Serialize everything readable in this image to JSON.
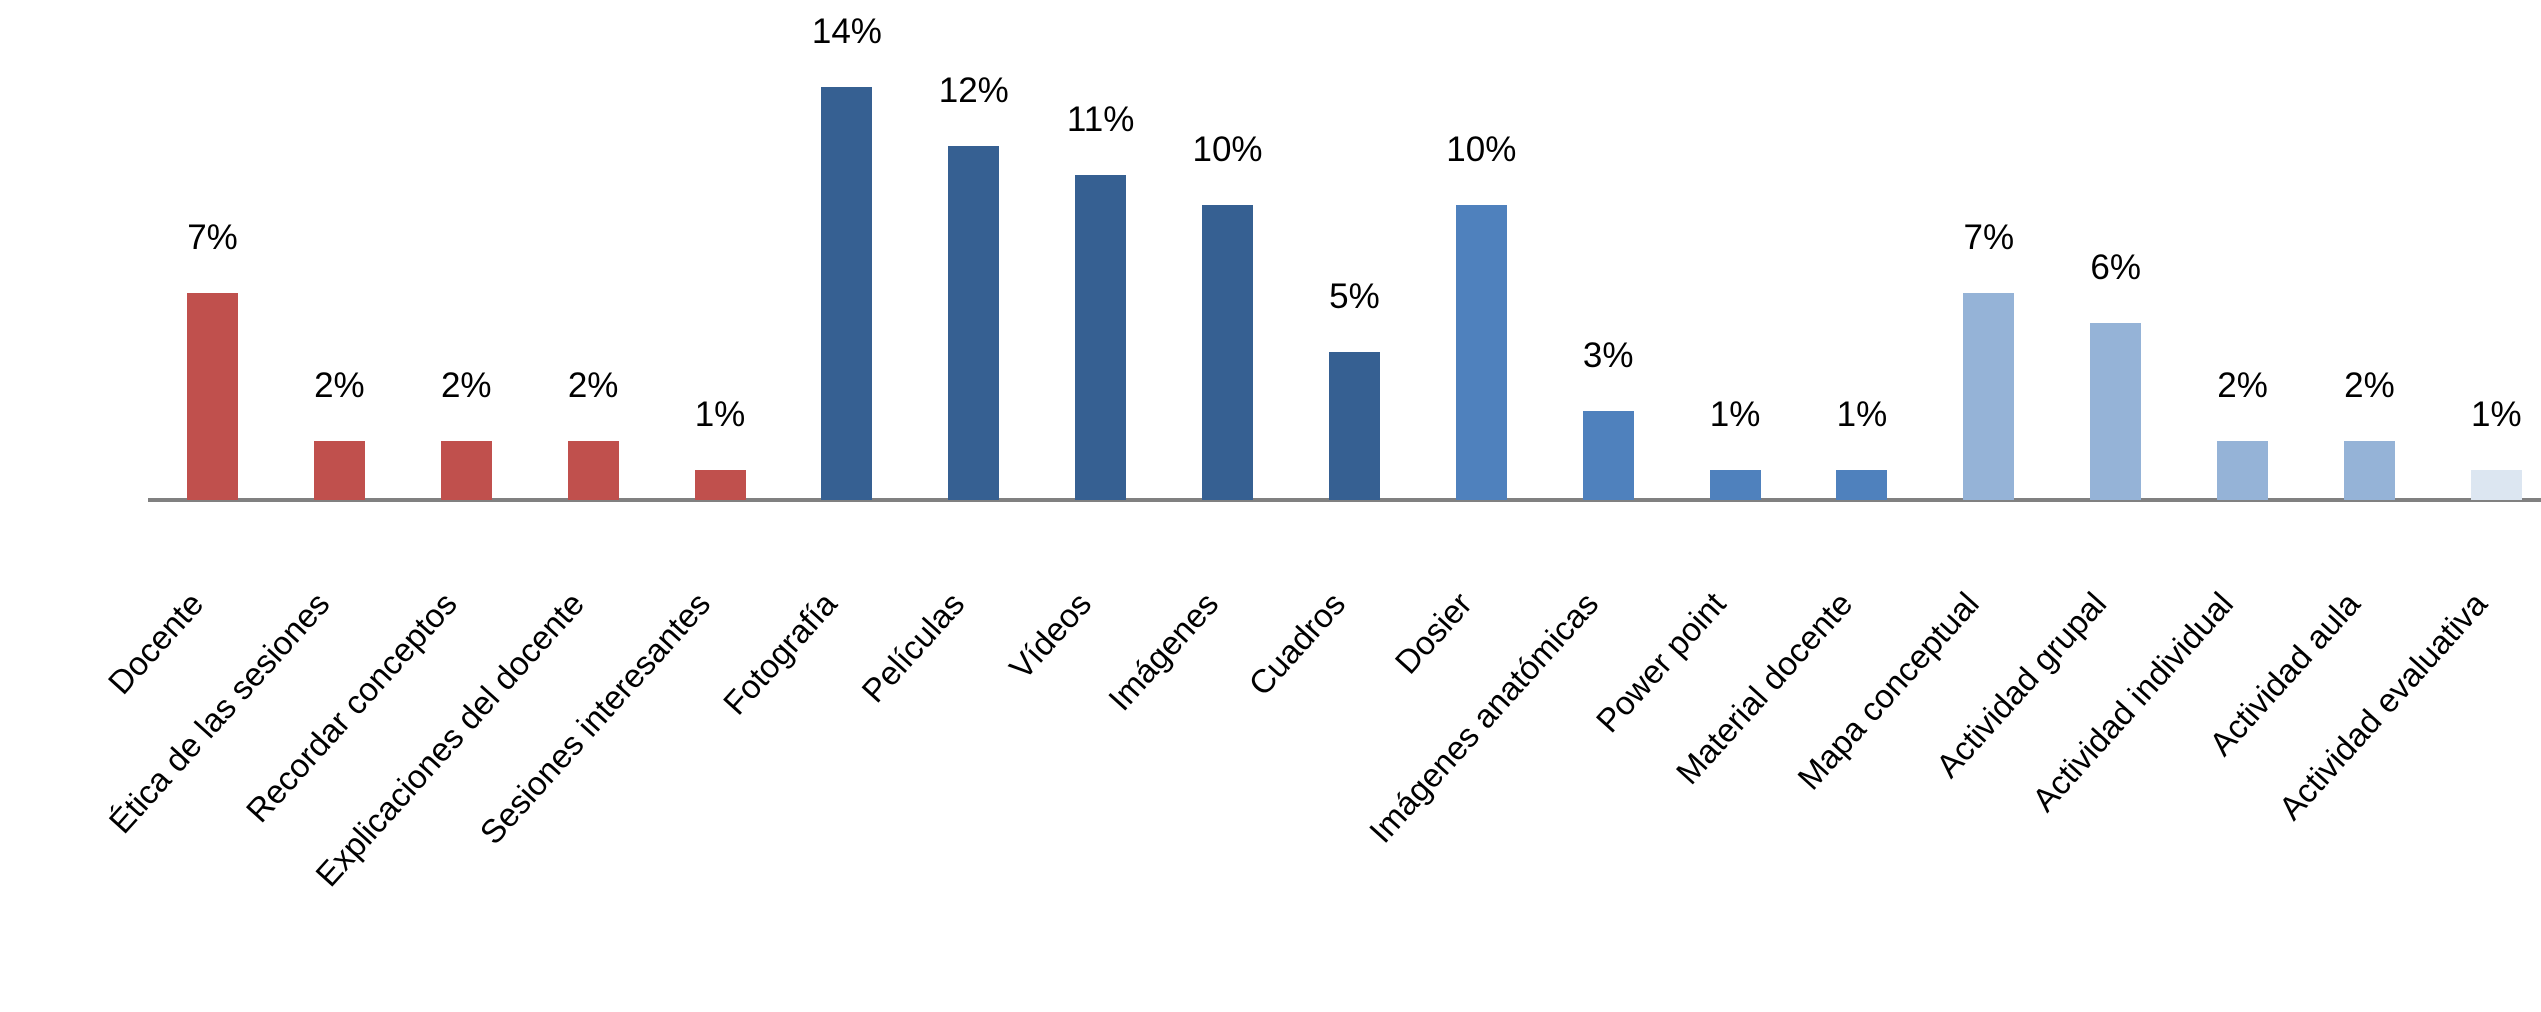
{
  "chart_data": {
    "type": "bar",
    "title": "",
    "xlabel": "",
    "ylabel": "",
    "categories": [
      "Docente",
      "Ética de las sesiones",
      "Recordar conceptos",
      "Explicaciones del docente",
      "Sesiones interesantes",
      "Fotografía",
      "Películas",
      "Vídeos",
      "Imágenes",
      "Cuadros",
      "Dosier",
      "Imágenes anatómicas",
      "Power point",
      "Material docente",
      "Mapa conceptual",
      "Actividad grupal",
      "Actividad individual",
      "Actividad aula",
      "Actividad evaluativa"
    ],
    "values": [
      7,
      2,
      2,
      2,
      1,
      14,
      12,
      11,
      10,
      5,
      10,
      3,
      1,
      1,
      7,
      6,
      2,
      2,
      1
    ],
    "value_labels": [
      "7%",
      "2%",
      "2%",
      "2%",
      "1%",
      "14%",
      "12%",
      "11%",
      "10%",
      "5%",
      "10%",
      "3%",
      "1%",
      "1%",
      "7%",
      "6%",
      "2%",
      "2%",
      "1%"
    ],
    "groups": [
      {
        "name": "red-group",
        "color": "#C0504D",
        "indices": [
          0,
          1,
          2,
          3,
          4
        ]
      },
      {
        "name": "dark-blue-group",
        "color": "#366092",
        "indices": [
          5,
          6,
          7,
          8,
          9
        ]
      },
      {
        "name": "medium-blue-group",
        "color": "#4F81BD",
        "indices": [
          10,
          11,
          12,
          13
        ]
      },
      {
        "name": "light-blue-group",
        "color": "#95B3D7",
        "indices": [
          14,
          15,
          16,
          17
        ]
      },
      {
        "name": "pale-blue-group",
        "color": "#DCE6F1",
        "indices": [
          18
        ]
      }
    ],
    "ylim": [
      0,
      15
    ],
    "grid": false,
    "legend": false,
    "axis_line_color": "#808080",
    "label_rotation_deg": -48
  }
}
